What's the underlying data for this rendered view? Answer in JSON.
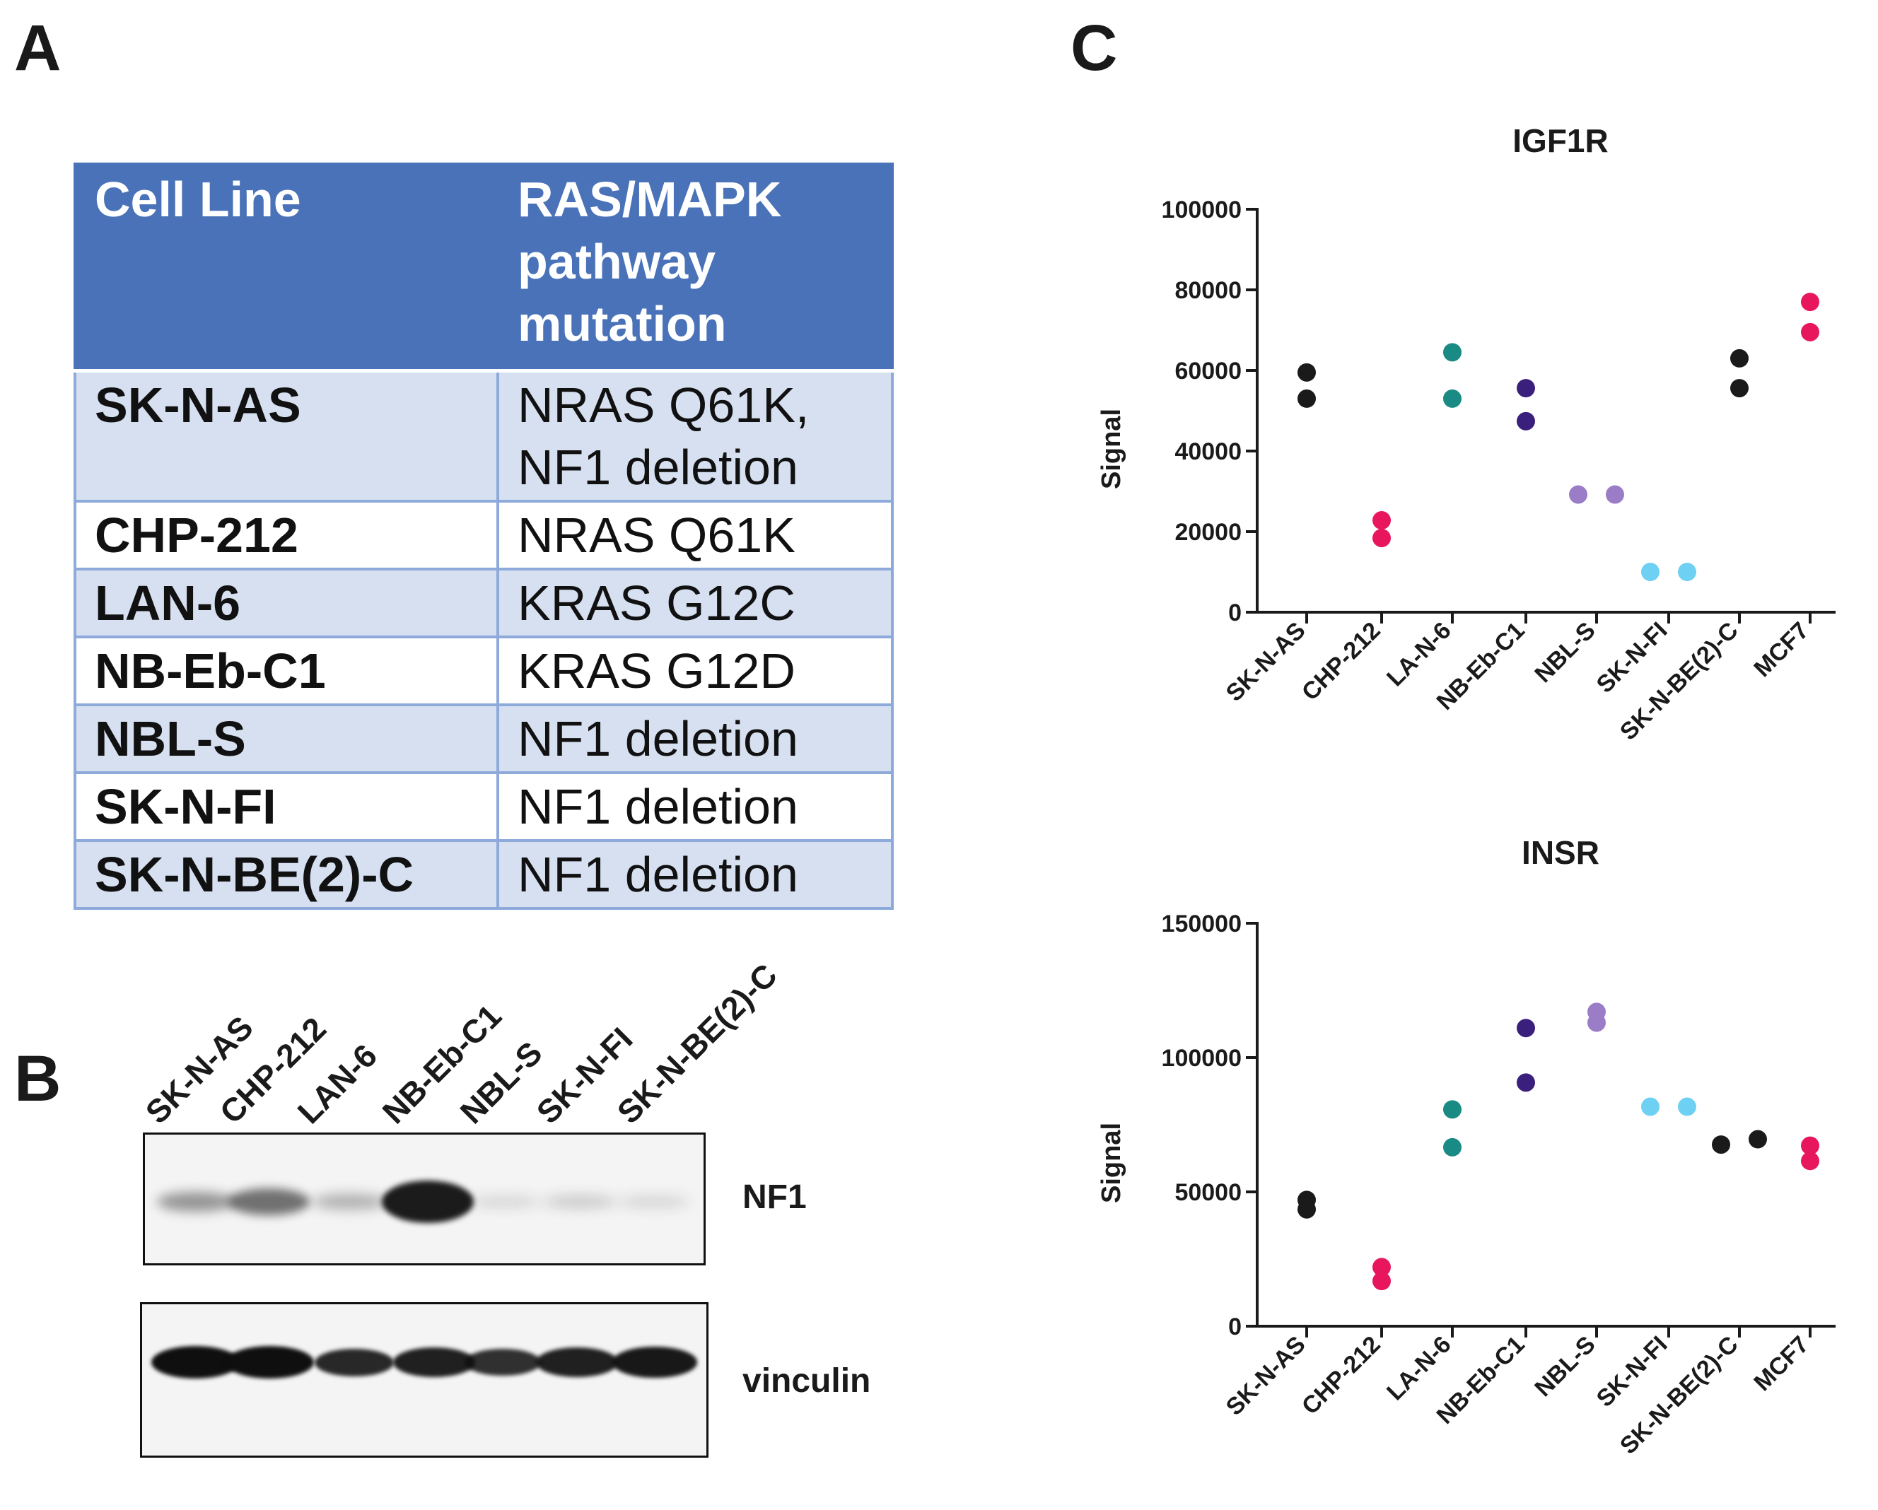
{
  "panels": {
    "a": "A",
    "b": "B",
    "c": "C"
  },
  "table": {
    "headers": [
      "Cell Line",
      "RAS/MAPK pathway mutation"
    ],
    "rows": [
      {
        "cell_line": "SK-N-AS",
        "mutation": "NRAS Q61K, NF1 deletion"
      },
      {
        "cell_line": "CHP-212",
        "mutation": "NRAS Q61K"
      },
      {
        "cell_line": "LAN-6",
        "mutation": "KRAS G12C"
      },
      {
        "cell_line": "NB-Eb-C1",
        "mutation": "KRAS G12D"
      },
      {
        "cell_line": "NBL-S",
        "mutation": "NF1 deletion"
      },
      {
        "cell_line": "SK-N-FI",
        "mutation": "NF1 deletion"
      },
      {
        "cell_line": "SK-N-BE(2)-C",
        "mutation": "NF1 deletion"
      }
    ],
    "colors": {
      "header": "#4a72b8",
      "row_shaded": "#d6e0f1",
      "border": "#8eaadb"
    }
  },
  "blot": {
    "lanes": [
      "SK-N-AS",
      "CHP-212",
      "LAN-6",
      "NB-Eb-C1",
      "NBL-S",
      "SK-N-FI",
      "SK-N-BE(2)-C"
    ],
    "proteins": {
      "nf1": "NF1",
      "vinculin": "vinculin"
    },
    "nf1_intensity": [
      0.35,
      0.55,
      0.22,
      1.0,
      0.05,
      0.1,
      0.06
    ],
    "vinculin_intensity": [
      1.0,
      1.0,
      0.75,
      0.85,
      0.7,
      0.85,
      0.9
    ]
  },
  "chart_data": [
    {
      "type": "scatter",
      "title": "IGF1R",
      "ylabel": "Signal",
      "xlabel": "",
      "ylim": [
        0,
        100000
      ],
      "yticks": [
        "0",
        "20000",
        "40000",
        "60000",
        "80000",
        "100000"
      ],
      "categories": [
        "SK-N-AS",
        "CHP-212",
        "LA-N-6",
        "NB-Eb-C1",
        "NBL-S",
        "SK-N-FI",
        "SK-N-BE(2)-C",
        "MCF7"
      ],
      "colors": [
        "#1a1a1a",
        "#e8175d",
        "#1a8a84",
        "#3b1f7d",
        "#9b7cc6",
        "#6ed0f2",
        "#1a1a1a",
        "#e8175d"
      ],
      "values": [
        [
          59500,
          53000
        ],
        [
          22800,
          18400
        ],
        [
          64500,
          53000
        ],
        [
          55600,
          47400
        ],
        [
          29200,
          29200
        ],
        [
          10000,
          10000
        ],
        [
          63000,
          55600
        ],
        [
          77000,
          69500
        ]
      ]
    },
    {
      "type": "scatter",
      "title": "INSR",
      "ylabel": "Signal",
      "xlabel": "",
      "ylim": [
        0,
        150000
      ],
      "yticks": [
        "0",
        "50000",
        "100000",
        "150000"
      ],
      "categories": [
        "SK-N-AS",
        "CHP-212",
        "LA-N-6",
        "NB-Eb-C1",
        "NBL-S",
        "SK-N-FI",
        "SK-N-BE(2)-C",
        "MCF7"
      ],
      "colors": [
        "#1a1a1a",
        "#e8175d",
        "#1a8a84",
        "#3b1f7d",
        "#9b7cc6",
        "#6ed0f2",
        "#1a1a1a",
        "#e8175d"
      ],
      "values": [
        [
          43500,
          47000
        ],
        [
          16800,
          22000
        ],
        [
          80700,
          66600
        ],
        [
          111000,
          90700
        ],
        [
          113000,
          117000
        ],
        [
          81700,
          81700
        ],
        [
          67600,
          69600
        ],
        [
          61500,
          67200
        ]
      ]
    }
  ]
}
